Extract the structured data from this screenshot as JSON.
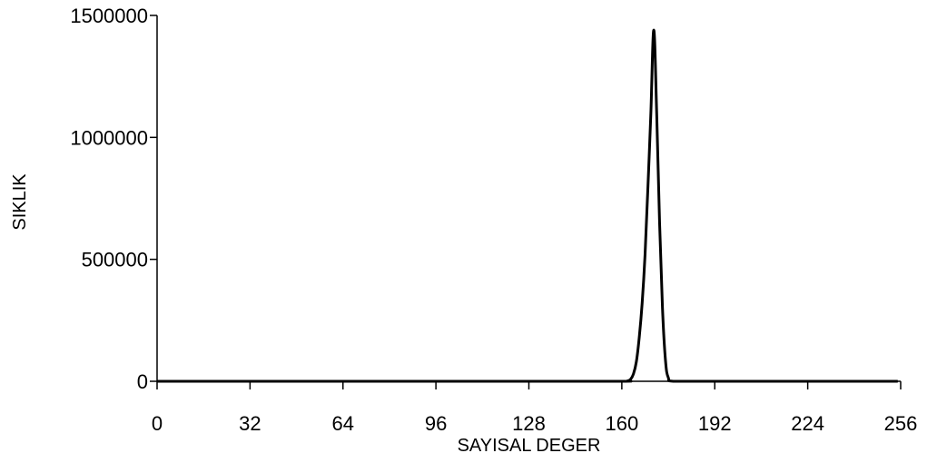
{
  "chart_data": {
    "type": "line",
    "title": "",
    "xlabel": "SAYISAL DEGER",
    "ylabel": "SIKLIK",
    "xlim": [
      0,
      256
    ],
    "ylim": [
      0,
      1500000
    ],
    "x_ticks": [
      0,
      32,
      64,
      96,
      128,
      160,
      192,
      224,
      256
    ],
    "y_ticks": [
      0,
      500000,
      1000000,
      1500000
    ],
    "grid": false,
    "legend": "none",
    "series": [
      {
        "color": "#000000",
        "x": [
          0,
          32,
          64,
          96,
          128,
          160,
          162,
          163,
          164,
          165,
          166,
          167,
          168,
          169,
          170,
          171,
          172,
          173,
          174,
          175,
          176,
          178,
          192,
          224,
          255
        ],
        "y": [
          0,
          0,
          0,
          0,
          0,
          0,
          2000,
          8000,
          30000,
          80000,
          180000,
          320000,
          520000,
          800000,
          1100000,
          1440000,
          1100000,
          650000,
          300000,
          90000,
          15000,
          0,
          0,
          0,
          0
        ]
      }
    ]
  }
}
